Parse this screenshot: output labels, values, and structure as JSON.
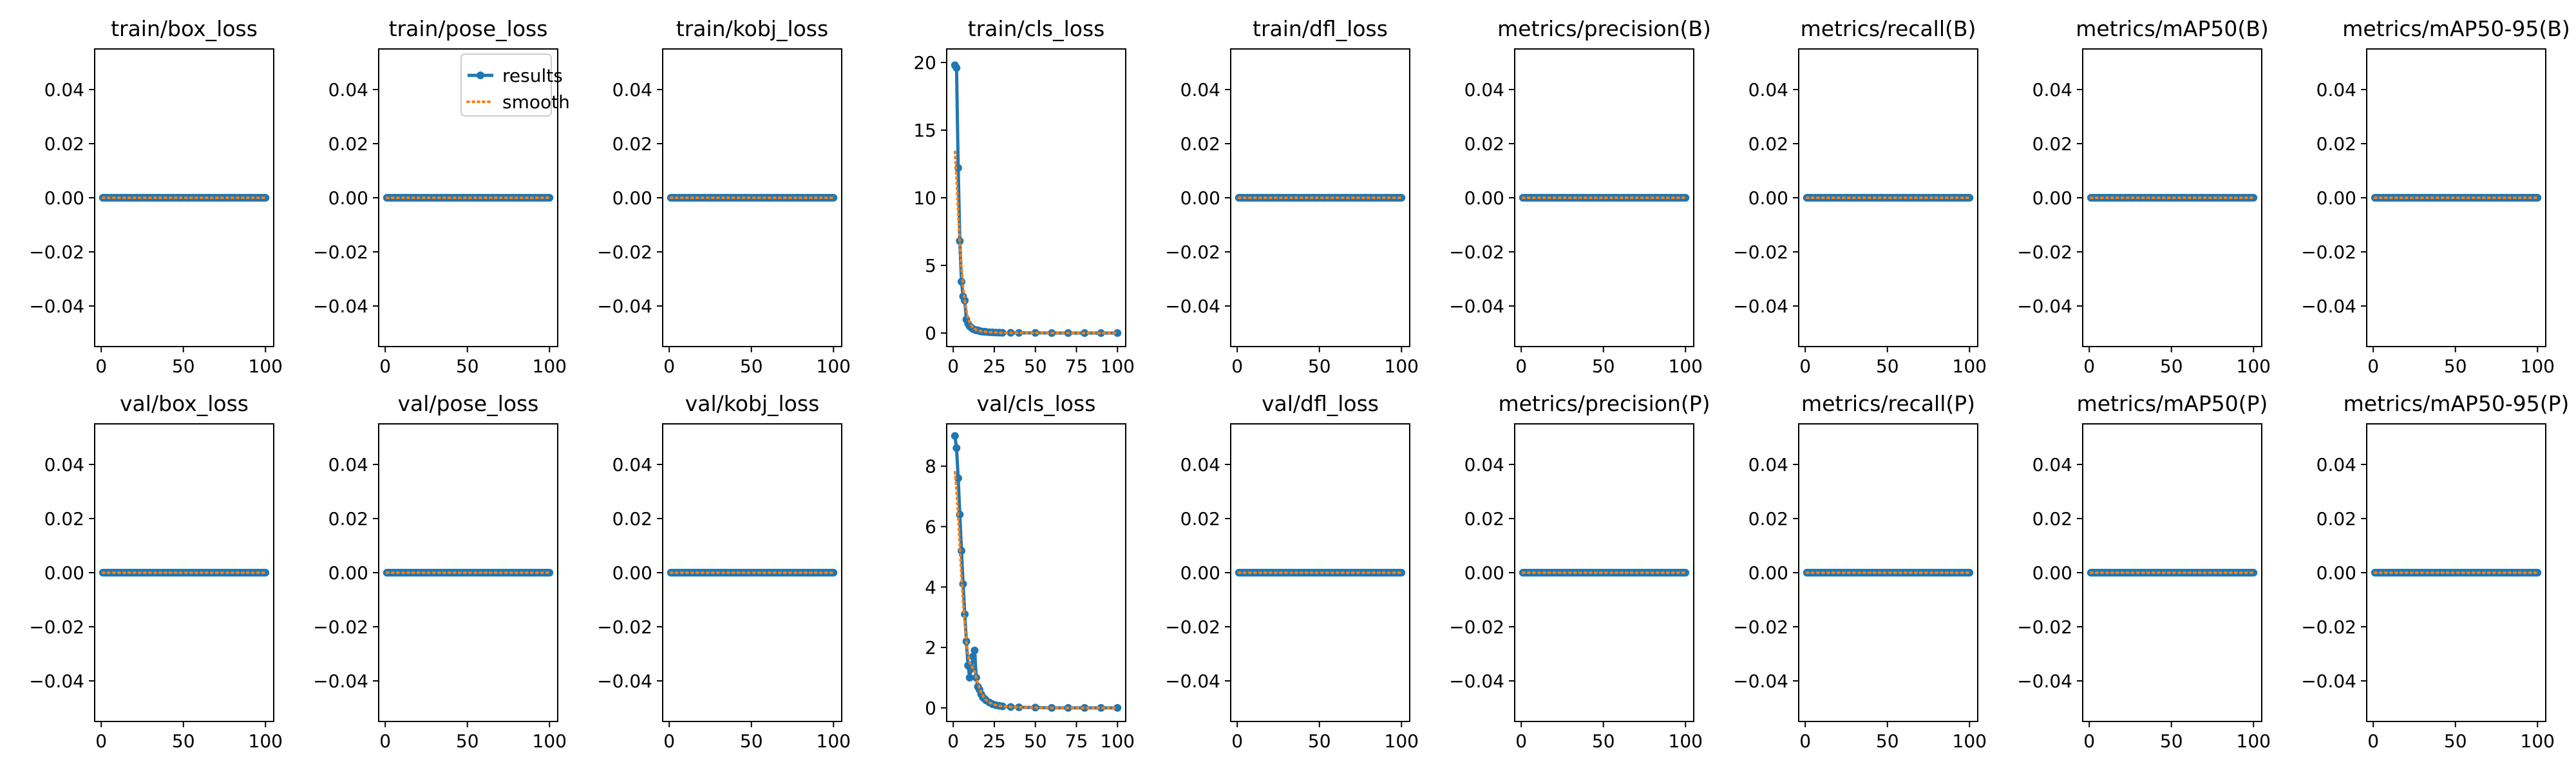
{
  "colors": {
    "results": "#1f77b4",
    "smooth": "#ff7f0e",
    "axes": "#000000",
    "background": "#ffffff"
  },
  "legend": {
    "panel_index": 1,
    "placement": "top-right",
    "entries": [
      {
        "label": "results",
        "style": "line-with-dots"
      },
      {
        "label": "smooth",
        "style": "dotted"
      }
    ]
  },
  "chart_data": [
    {
      "type": "line",
      "title": "train/box_loss",
      "xlabel": "",
      "ylabel": "",
      "xlim": [
        -4,
        105
      ],
      "ylim": [
        -0.055,
        0.055
      ],
      "xticks": [
        "0",
        "50",
        "100"
      ],
      "yticks": [
        "−0.04",
        "−0.02",
        "0.00",
        "0.02",
        "0.04"
      ],
      "series": [
        {
          "name": "results",
          "x": [
            1,
            100
          ],
          "y": [
            0,
            0
          ]
        },
        {
          "name": "smooth",
          "x": [
            1,
            100
          ],
          "y": [
            0,
            0
          ]
        }
      ]
    },
    {
      "type": "line",
      "title": "train/pose_loss",
      "xlabel": "",
      "ylabel": "",
      "xlim": [
        -4,
        105
      ],
      "ylim": [
        -0.055,
        0.055
      ],
      "xticks": [
        "0",
        "50",
        "100"
      ],
      "yticks": [
        "−0.04",
        "−0.02",
        "0.00",
        "0.02",
        "0.04"
      ],
      "series": [
        {
          "name": "results",
          "x": [
            1,
            100
          ],
          "y": [
            0,
            0
          ]
        },
        {
          "name": "smooth",
          "x": [
            1,
            100
          ],
          "y": [
            0,
            0
          ]
        }
      ]
    },
    {
      "type": "line",
      "title": "train/kobj_loss",
      "xlabel": "",
      "ylabel": "",
      "xlim": [
        -4,
        105
      ],
      "ylim": [
        -0.055,
        0.055
      ],
      "xticks": [
        "0",
        "50",
        "100"
      ],
      "yticks": [
        "−0.04",
        "−0.02",
        "0.00",
        "0.02",
        "0.04"
      ],
      "series": [
        {
          "name": "results",
          "x": [
            1,
            100
          ],
          "y": [
            0,
            0
          ]
        },
        {
          "name": "smooth",
          "x": [
            1,
            100
          ],
          "y": [
            0,
            0
          ]
        }
      ]
    },
    {
      "type": "line",
      "title": "train/cls_loss",
      "xlabel": "",
      "ylabel": "",
      "xlim": [
        -4,
        105
      ],
      "ylim": [
        -1,
        21
      ],
      "xticks": [
        "0",
        "25",
        "50",
        "75",
        "100"
      ],
      "yticks": [
        "0",
        "5",
        "10",
        "15",
        "20"
      ],
      "series": [
        {
          "name": "results",
          "x": [
            1,
            2,
            3,
            4,
            5,
            6,
            7,
            8,
            9,
            10,
            11,
            12,
            13,
            14,
            15,
            16,
            17,
            18,
            19,
            20,
            22,
            24,
            26,
            28,
            30,
            35,
            40,
            50,
            60,
            70,
            80,
            90,
            100
          ],
          "y": [
            19.8,
            19.6,
            12.2,
            6.8,
            3.8,
            2.7,
            2.4,
            1.0,
            0.7,
            0.5,
            0.4,
            0.3,
            0.25,
            0.2,
            0.2,
            0.15,
            0.12,
            0.1,
            0.1,
            0.08,
            0.06,
            0.05,
            0.04,
            0.03,
            0.02,
            0.02,
            0.01,
            0.01,
            0.0,
            0.0,
            0.0,
            0.0,
            0.0
          ]
        },
        {
          "name": "smooth",
          "x": [
            1,
            2,
            3,
            4,
            5,
            6,
            7,
            8,
            9,
            10,
            11,
            12,
            13,
            14,
            15,
            16,
            17,
            18,
            19,
            20,
            22,
            24,
            26,
            28,
            30,
            35,
            40,
            50,
            60,
            70,
            80,
            90,
            100
          ],
          "y": [
            13.4,
            11.4,
            8.8,
            6.6,
            4.8,
            3.4,
            2.4,
            1.7,
            1.1,
            0.8,
            0.55,
            0.4,
            0.3,
            0.25,
            0.2,
            0.16,
            0.13,
            0.11,
            0.1,
            0.08,
            0.06,
            0.05,
            0.04,
            0.03,
            0.02,
            0.02,
            0.01,
            0.01,
            0.0,
            0.0,
            0.0,
            0.0,
            0.0
          ]
        }
      ]
    },
    {
      "type": "line",
      "title": "train/dfl_loss",
      "xlabel": "",
      "ylabel": "",
      "xlim": [
        -4,
        105
      ],
      "ylim": [
        -0.055,
        0.055
      ],
      "xticks": [
        "0",
        "50",
        "100"
      ],
      "yticks": [
        "−0.04",
        "−0.02",
        "0.00",
        "0.02",
        "0.04"
      ],
      "series": [
        {
          "name": "results",
          "x": [
            1,
            100
          ],
          "y": [
            0,
            0
          ]
        },
        {
          "name": "smooth",
          "x": [
            1,
            100
          ],
          "y": [
            0,
            0
          ]
        }
      ]
    },
    {
      "type": "line",
      "title": "metrics/precision(B)",
      "xlabel": "",
      "ylabel": "",
      "xlim": [
        -4,
        105
      ],
      "ylim": [
        -0.055,
        0.055
      ],
      "xticks": [
        "0",
        "50",
        "100"
      ],
      "yticks": [
        "−0.04",
        "−0.02",
        "0.00",
        "0.02",
        "0.04"
      ],
      "series": [
        {
          "name": "results",
          "x": [
            1,
            100
          ],
          "y": [
            0,
            0
          ]
        },
        {
          "name": "smooth",
          "x": [
            1,
            100
          ],
          "y": [
            0,
            0
          ]
        }
      ]
    },
    {
      "type": "line",
      "title": "metrics/recall(B)",
      "xlabel": "",
      "ylabel": "",
      "xlim": [
        -4,
        105
      ],
      "ylim": [
        -0.055,
        0.055
      ],
      "xticks": [
        "0",
        "50",
        "100"
      ],
      "yticks": [
        "−0.04",
        "−0.02",
        "0.00",
        "0.02",
        "0.04"
      ],
      "series": [
        {
          "name": "results",
          "x": [
            1,
            100
          ],
          "y": [
            0,
            0
          ]
        },
        {
          "name": "smooth",
          "x": [
            1,
            100
          ],
          "y": [
            0,
            0
          ]
        }
      ]
    },
    {
      "type": "line",
      "title": "metrics/mAP50(B)",
      "xlabel": "",
      "ylabel": "",
      "xlim": [
        -4,
        105
      ],
      "ylim": [
        -0.055,
        0.055
      ],
      "xticks": [
        "0",
        "50",
        "100"
      ],
      "yticks": [
        "−0.04",
        "−0.02",
        "0.00",
        "0.02",
        "0.04"
      ],
      "series": [
        {
          "name": "results",
          "x": [
            1,
            100
          ],
          "y": [
            0,
            0
          ]
        },
        {
          "name": "smooth",
          "x": [
            1,
            100
          ],
          "y": [
            0,
            0
          ]
        }
      ]
    },
    {
      "type": "line",
      "title": "metrics/mAP50-95(B)",
      "xlabel": "",
      "ylabel": "",
      "xlim": [
        -4,
        105
      ],
      "ylim": [
        -0.055,
        0.055
      ],
      "xticks": [
        "0",
        "50",
        "100"
      ],
      "yticks": [
        "−0.04",
        "−0.02",
        "0.00",
        "0.02",
        "0.04"
      ],
      "series": [
        {
          "name": "results",
          "x": [
            1,
            100
          ],
          "y": [
            0,
            0
          ]
        },
        {
          "name": "smooth",
          "x": [
            1,
            100
          ],
          "y": [
            0,
            0
          ]
        }
      ]
    },
    {
      "type": "line",
      "title": "val/box_loss",
      "xlabel": "",
      "ylabel": "",
      "xlim": [
        -4,
        105
      ],
      "ylim": [
        -0.055,
        0.055
      ],
      "xticks": [
        "0",
        "50",
        "100"
      ],
      "yticks": [
        "−0.04",
        "−0.02",
        "0.00",
        "0.02",
        "0.04"
      ],
      "series": [
        {
          "name": "results",
          "x": [
            1,
            100
          ],
          "y": [
            0,
            0
          ]
        },
        {
          "name": "smooth",
          "x": [
            1,
            100
          ],
          "y": [
            0,
            0
          ]
        }
      ]
    },
    {
      "type": "line",
      "title": "val/pose_loss",
      "xlabel": "",
      "ylabel": "",
      "xlim": [
        -4,
        105
      ],
      "ylim": [
        -0.055,
        0.055
      ],
      "xticks": [
        "0",
        "50",
        "100"
      ],
      "yticks": [
        "−0.04",
        "−0.02",
        "0.00",
        "0.02",
        "0.04"
      ],
      "series": [
        {
          "name": "results",
          "x": [
            1,
            100
          ],
          "y": [
            0,
            0
          ]
        },
        {
          "name": "smooth",
          "x": [
            1,
            100
          ],
          "y": [
            0,
            0
          ]
        }
      ]
    },
    {
      "type": "line",
      "title": "val/kobj_loss",
      "xlabel": "",
      "ylabel": "",
      "xlim": [
        -4,
        105
      ],
      "ylim": [
        -0.055,
        0.055
      ],
      "xticks": [
        "0",
        "50",
        "100"
      ],
      "yticks": [
        "−0.04",
        "−0.02",
        "0.00",
        "0.02",
        "0.04"
      ],
      "series": [
        {
          "name": "results",
          "x": [
            1,
            100
          ],
          "y": [
            0,
            0
          ]
        },
        {
          "name": "smooth",
          "x": [
            1,
            100
          ],
          "y": [
            0,
            0
          ]
        }
      ]
    },
    {
      "type": "line",
      "title": "val/cls_loss",
      "xlabel": "",
      "ylabel": "",
      "xlim": [
        -4,
        105
      ],
      "ylim": [
        -0.45,
        9.4
      ],
      "xticks": [
        "0",
        "25",
        "50",
        "75",
        "100"
      ],
      "yticks": [
        "0",
        "2",
        "4",
        "6",
        "8"
      ],
      "series": [
        {
          "name": "results",
          "x": [
            1,
            2,
            3,
            4,
            5,
            6,
            7,
            8,
            9,
            10,
            11,
            12,
            13,
            14,
            15,
            16,
            17,
            18,
            19,
            20,
            22,
            24,
            26,
            28,
            30,
            35,
            40,
            50,
            60,
            70,
            80,
            90,
            100
          ],
          "y": [
            9.0,
            8.6,
            7.6,
            6.4,
            5.2,
            4.1,
            3.1,
            2.2,
            1.4,
            1.0,
            1.3,
            1.7,
            1.9,
            1.0,
            0.7,
            0.6,
            0.45,
            0.35,
            0.3,
            0.25,
            0.18,
            0.12,
            0.09,
            0.07,
            0.05,
            0.03,
            0.02,
            0.01,
            0.0,
            0.0,
            0.0,
            0.0,
            0.0
          ]
        },
        {
          "name": "smooth",
          "x": [
            1,
            2,
            3,
            4,
            5,
            6,
            7,
            8,
            9,
            10,
            11,
            12,
            13,
            14,
            15,
            16,
            17,
            18,
            19,
            20,
            22,
            24,
            26,
            28,
            30,
            35,
            40,
            50,
            60,
            70,
            80,
            90,
            100
          ],
          "y": [
            7.8,
            7.2,
            6.3,
            5.3,
            4.3,
            3.5,
            2.8,
            2.2,
            1.8,
            1.5,
            1.4,
            1.3,
            1.2,
            1.0,
            0.8,
            0.65,
            0.5,
            0.4,
            0.32,
            0.26,
            0.18,
            0.13,
            0.09,
            0.07,
            0.05,
            0.03,
            0.02,
            0.01,
            0.0,
            0.0,
            0.0,
            0.0,
            0.0
          ]
        }
      ]
    },
    {
      "type": "line",
      "title": "val/dfl_loss",
      "xlabel": "",
      "ylabel": "",
      "xlim": [
        -4,
        105
      ],
      "ylim": [
        -0.055,
        0.055
      ],
      "xticks": [
        "0",
        "50",
        "100"
      ],
      "yticks": [
        "−0.04",
        "−0.02",
        "0.00",
        "0.02",
        "0.04"
      ],
      "series": [
        {
          "name": "results",
          "x": [
            1,
            100
          ],
          "y": [
            0,
            0
          ]
        },
        {
          "name": "smooth",
          "x": [
            1,
            100
          ],
          "y": [
            0,
            0
          ]
        }
      ]
    },
    {
      "type": "line",
      "title": "metrics/precision(P)",
      "xlabel": "",
      "ylabel": "",
      "xlim": [
        -4,
        105
      ],
      "ylim": [
        -0.055,
        0.055
      ],
      "xticks": [
        "0",
        "50",
        "100"
      ],
      "yticks": [
        "−0.04",
        "−0.02",
        "0.00",
        "0.02",
        "0.04"
      ],
      "series": [
        {
          "name": "results",
          "x": [
            1,
            100
          ],
          "y": [
            0,
            0
          ]
        },
        {
          "name": "smooth",
          "x": [
            1,
            100
          ],
          "y": [
            0,
            0
          ]
        }
      ]
    },
    {
      "type": "line",
      "title": "metrics/recall(P)",
      "xlabel": "",
      "ylabel": "",
      "xlim": [
        -4,
        105
      ],
      "ylim": [
        -0.055,
        0.055
      ],
      "xticks": [
        "0",
        "50",
        "100"
      ],
      "yticks": [
        "−0.04",
        "−0.02",
        "0.00",
        "0.02",
        "0.04"
      ],
      "series": [
        {
          "name": "results",
          "x": [
            1,
            100
          ],
          "y": [
            0,
            0
          ]
        },
        {
          "name": "smooth",
          "x": [
            1,
            100
          ],
          "y": [
            0,
            0
          ]
        }
      ]
    },
    {
      "type": "line",
      "title": "metrics/mAP50(P)",
      "xlabel": "",
      "ylabel": "",
      "xlim": [
        -4,
        105
      ],
      "ylim": [
        -0.055,
        0.055
      ],
      "xticks": [
        "0",
        "50",
        "100"
      ],
      "yticks": [
        "−0.04",
        "−0.02",
        "0.00",
        "0.02",
        "0.04"
      ],
      "series": [
        {
          "name": "results",
          "x": [
            1,
            100
          ],
          "y": [
            0,
            0
          ]
        },
        {
          "name": "smooth",
          "x": [
            1,
            100
          ],
          "y": [
            0,
            0
          ]
        }
      ]
    },
    {
      "type": "line",
      "title": "metrics/mAP50-95(P)",
      "xlabel": "",
      "ylabel": "",
      "xlim": [
        -4,
        105
      ],
      "ylim": [
        -0.055,
        0.055
      ],
      "xticks": [
        "0",
        "50",
        "100"
      ],
      "yticks": [
        "−0.04",
        "−0.02",
        "0.00",
        "0.02",
        "0.04"
      ],
      "series": [
        {
          "name": "results",
          "x": [
            1,
            100
          ],
          "y": [
            0,
            0
          ]
        },
        {
          "name": "smooth",
          "x": [
            1,
            100
          ],
          "y": [
            0,
            0
          ]
        }
      ]
    }
  ]
}
